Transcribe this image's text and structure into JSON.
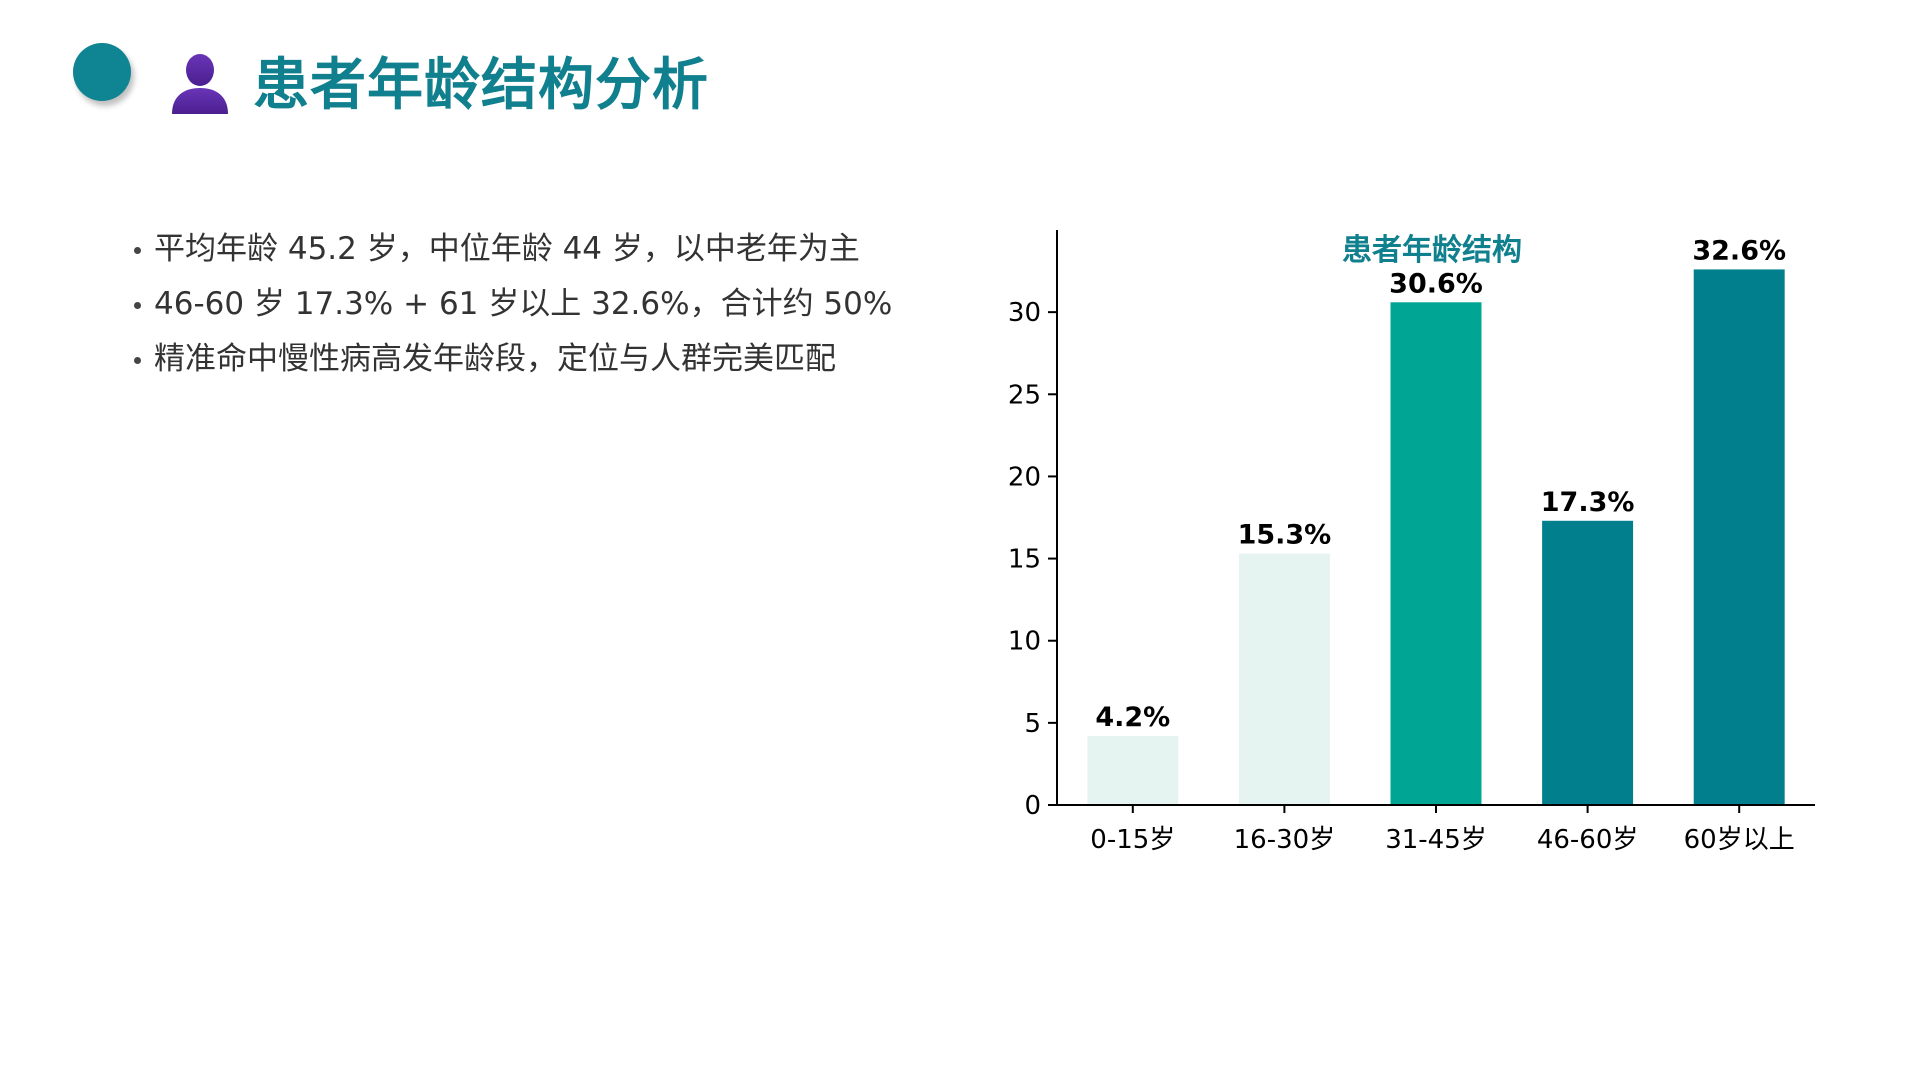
{
  "header": {
    "title": "患者年龄结构分析",
    "icon": "person-icon",
    "accent_color": "#0f8492",
    "icon_color": "#5b2aa3"
  },
  "bullets": [
    "平均年龄 45.2 岁，中位年龄 44 岁，以中老年为主",
    "46-60 岁 17.3% + 61 岁以上 32.6%，合计约 50%",
    "精准命中慢性病高发年龄段，定位与人群完美匹配"
  ],
  "chart_data": {
    "type": "bar",
    "title": "患者年龄结构",
    "categories": [
      "0-15岁",
      "16-30岁",
      "31-45岁",
      "46-60岁",
      "60岁以上"
    ],
    "values": [
      4.2,
      15.3,
      30.6,
      17.3,
      32.6
    ],
    "value_labels": [
      "4.2%",
      "15.3%",
      "30.6%",
      "17.3%",
      "32.6%"
    ],
    "bar_colors": [
      "#e6f4f1",
      "#e6f4f1",
      "#00a693",
      "#027f8d",
      "#027f8d"
    ],
    "xlabel": "",
    "ylabel": "",
    "ylim": [
      0,
      35
    ],
    "yticks": [
      0,
      5,
      10,
      15,
      20,
      25,
      30
    ],
    "grid": false,
    "title_color": "#11808e"
  }
}
